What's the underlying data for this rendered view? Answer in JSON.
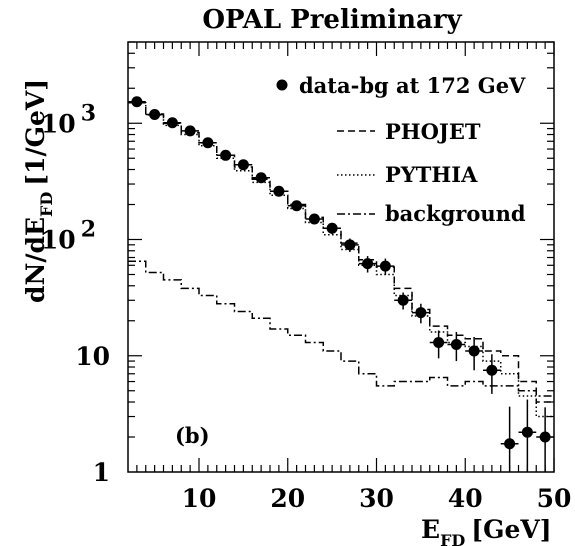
{
  "chart_data": {
    "type": "scatter",
    "title": "OPAL Preliminary",
    "xlabel": "E",
    "xlabel_sub": "FD",
    "xlabel_unit": "[GeV]",
    "ylabel_main": "dN/dE",
    "ylabel_sub": "FD",
    "ylabel_unit": "[1/GeV]",
    "panel_label": "(b)",
    "xlim": [
      2,
      50
    ],
    "ylim": [
      1,
      5000
    ],
    "log_y": true,
    "grid": false,
    "legend_position": "top-right",
    "x_ticks": [
      "10",
      "20",
      "30",
      "40",
      "50"
    ],
    "y_ticks": [
      {
        "base": "1",
        "exp": ""
      },
      {
        "base": "10",
        "exp": ""
      },
      {
        "base": "10",
        "exp": "2"
      },
      {
        "base": "10",
        "exp": "3"
      }
    ],
    "bin_edges": [
      2,
      4,
      6,
      8,
      10,
      12,
      14,
      16,
      18,
      20,
      22,
      24,
      26,
      28,
      30,
      32,
      34,
      36,
      38,
      40,
      42,
      44,
      46,
      48,
      50
    ],
    "series": [
      {
        "name": "data-bg at 172 GeV",
        "style": "points",
        "x": [
          3,
          5,
          7,
          9,
          11,
          13,
          15,
          17,
          19,
          21,
          23,
          25,
          27,
          29,
          31,
          33,
          35,
          37,
          39,
          41,
          43,
          45,
          47,
          49
        ],
        "y": [
          1530,
          1190,
          1010,
          860,
          680,
          530,
          440,
          340,
          260,
          195,
          150,
          125,
          90,
          62,
          59,
          30,
          23.5,
          13,
          12.5,
          11,
          7.5,
          1.75,
          2.2,
          2.0
        ],
        "err_low": [
          50,
          45,
          40,
          37,
          33,
          29,
          27,
          24,
          21,
          18,
          15,
          14,
          12,
          10,
          9.5,
          5,
          4.5,
          3.5,
          3.5,
          3.5,
          2.8,
          1.2,
          1.2,
          1.1
        ],
        "err_high": [
          50,
          45,
          40,
          37,
          33,
          29,
          27,
          24,
          21,
          18,
          15,
          14,
          12,
          10,
          9.5,
          5,
          4.5,
          3.5,
          3.5,
          3.5,
          2.8,
          1.9,
          2.0,
          1.6
        ]
      },
      {
        "name": "PHOJET",
        "style": "dashed",
        "values": [
          1500,
          1200,
          1000,
          830,
          680,
          530,
          420,
          330,
          260,
          200,
          155,
          125,
          93,
          67,
          58,
          38,
          25,
          18,
          15,
          14,
          11,
          10,
          6,
          4
        ]
      },
      {
        "name": "PYTHIA",
        "style": "dotted",
        "values": [
          1500,
          1180,
          960,
          800,
          640,
          500,
          390,
          310,
          240,
          185,
          140,
          110,
          82,
          60,
          50,
          33,
          22,
          16,
          13,
          12,
          9,
          7,
          4.5,
          3
        ]
      },
      {
        "name": "background",
        "style": "dashdot",
        "values": [
          65,
          52,
          45,
          38,
          33,
          28,
          24,
          21,
          17,
          15,
          13,
          11,
          9,
          7,
          5.5,
          6,
          6,
          6.5,
          5.5,
          6,
          5.5,
          5.5,
          5,
          4.5
        ]
      }
    ]
  }
}
